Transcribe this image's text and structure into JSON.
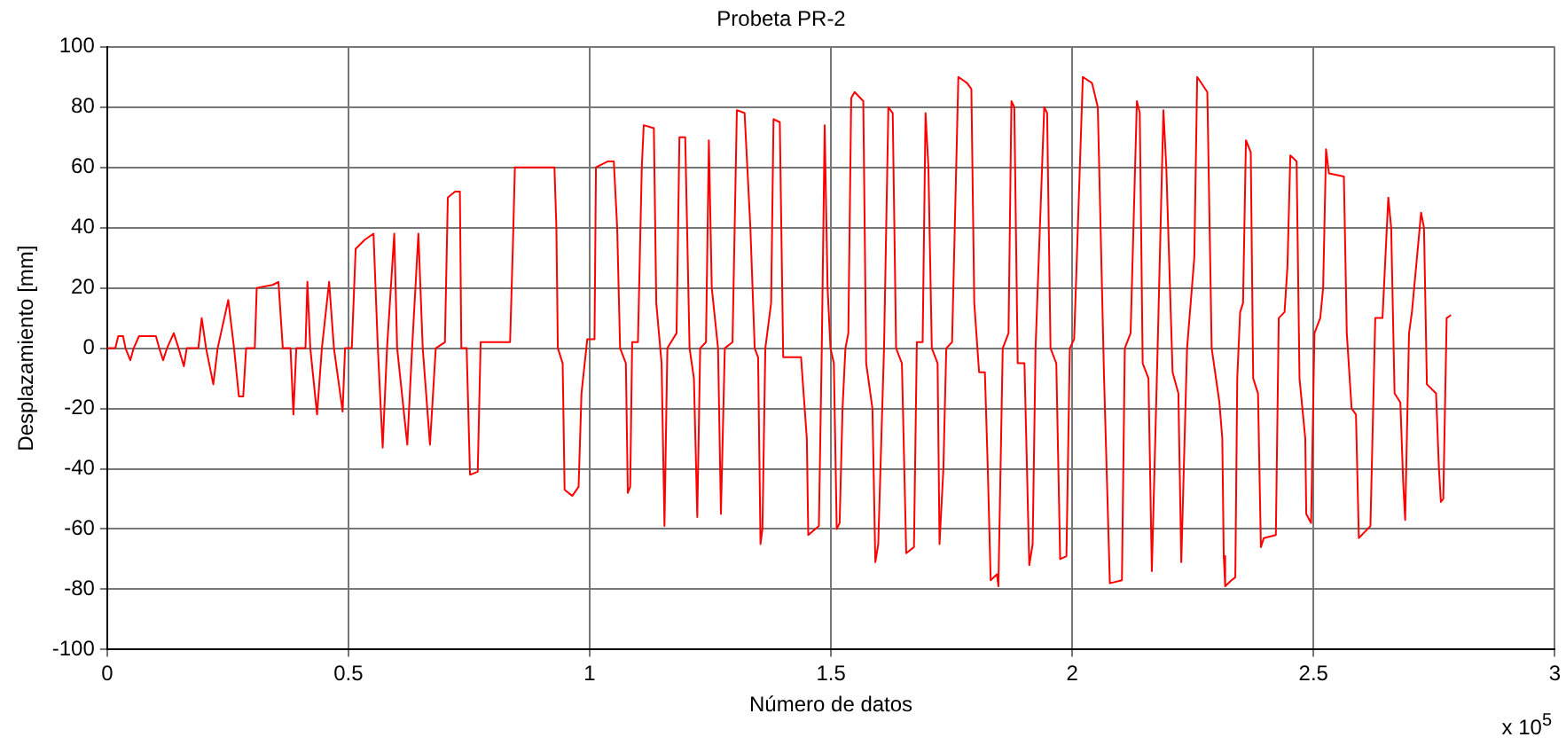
{
  "chart_data": {
    "type": "line",
    "title": "Probeta PR-2",
    "xlabel": "Número de datos",
    "ylabel": "Desplazamiento [mm]",
    "annotations": [
      "x 10$^{5}$"
    ],
    "x": [
      0,
      0.017,
      0.023,
      0.033,
      0.038,
      0.048,
      0.055,
      0.066,
      0.101,
      0.108,
      0.116,
      0.124,
      0.138,
      0.148,
      0.159,
      0.165,
      0.189,
      0.196,
      0.205,
      0.22,
      0.229,
      0.251,
      0.263,
      0.273,
      0.282,
      0.288,
      0.306,
      0.31,
      0.343,
      0.355,
      0.364,
      0.38,
      0.386,
      0.392,
      0.411,
      0.415,
      0.421,
      0.435,
      0.445,
      0.46,
      0.47,
      0.488,
      0.493,
      0.507,
      0.515,
      0.534,
      0.552,
      0.561,
      0.571,
      0.58,
      0.595,
      0.601,
      0.622,
      0.632,
      0.645,
      0.654,
      0.669,
      0.681,
      0.7,
      0.706,
      0.721,
      0.731,
      0.734,
      0.745,
      0.752,
      0.768,
      0.774,
      0.835,
      0.841,
      0.845,
      0.927,
      0.931,
      0.934,
      0.944,
      0.948,
      0.964,
      0.977,
      0.983,
      0.995,
      1.01,
      1.013,
      1.038,
      1.05,
      1.057,
      1.063,
      1.075,
      1.079,
      1.084,
      1.088,
      1.1,
      1.108,
      1.112,
      1.133,
      1.138,
      1.149,
      1.155,
      1.161,
      1.18,
      1.186,
      1.198,
      1.207,
      1.216,
      1.223,
      1.229,
      1.241,
      1.247,
      1.253,
      1.266,
      1.272,
      1.28,
      1.296,
      1.305,
      1.321,
      1.333,
      1.342,
      1.349,
      1.354,
      1.358,
      1.364,
      1.376,
      1.381,
      1.394,
      1.401,
      1.438,
      1.45,
      1.453,
      1.475,
      1.481,
      1.487,
      1.493,
      1.499,
      1.506,
      1.512,
      1.518,
      1.524,
      1.53,
      1.536,
      1.542,
      1.549,
      1.567,
      1.573,
      1.586,
      1.592,
      1.598,
      1.61,
      1.619,
      1.628,
      1.635,
      1.647,
      1.656,
      1.672,
      1.678,
      1.69,
      1.696,
      1.702,
      1.709,
      1.721,
      1.725,
      1.733,
      1.739,
      1.751,
      1.764,
      1.782,
      1.791,
      1.797,
      1.807,
      1.819,
      1.825,
      1.831,
      1.844,
      1.847,
      1.856,
      1.868,
      1.874,
      1.88,
      1.887,
      1.901,
      1.911,
      1.918,
      1.924,
      1.942,
      1.948,
      1.955,
      1.967,
      1.975,
      1.988,
      1.995,
      2.004,
      2.022,
      2.041,
      2.053,
      2.066,
      2.078,
      2.103,
      2.109,
      2.121,
      2.134,
      2.14,
      2.146,
      2.158,
      2.165,
      2.177,
      2.189,
      2.195,
      2.208,
      2.22,
      2.226,
      2.238,
      2.253,
      2.259,
      2.28,
      2.289,
      2.305,
      2.311,
      2.314,
      2.317,
      2.33,
      2.338,
      2.342,
      2.348,
      2.354,
      2.36,
      2.37,
      2.375,
      2.385,
      2.391,
      2.397,
      2.422,
      2.428,
      2.44,
      2.446,
      2.452,
      2.465,
      2.471,
      2.483,
      2.485,
      2.495,
      2.502,
      2.514,
      2.52,
      2.526,
      2.532,
      2.563,
      2.569,
      2.579,
      2.588,
      2.594,
      2.606,
      2.618,
      2.628,
      2.643,
      2.655,
      2.661,
      2.668,
      2.68,
      2.686,
      2.69,
      2.698,
      2.704,
      2.723,
      2.729,
      2.735,
      2.754,
      2.76,
      2.764,
      2.769,
      2.776,
      2.785
    ],
    "values": [
      0,
      0,
      4,
      4,
      0,
      -4,
      0,
      4,
      4,
      0,
      -4,
      0,
      5,
      0,
      -6,
      0,
      0,
      10,
      0,
      -12,
      0,
      16,
      0,
      -16,
      -16,
      0,
      0,
      20,
      21,
      22,
      0,
      0,
      -22,
      0,
      0,
      22,
      0,
      -22,
      0,
      22,
      0,
      -21,
      0,
      0,
      33,
      36,
      38,
      0,
      -33,
      0,
      38,
      0,
      -32,
      0,
      38,
      0,
      -32,
      0,
      2,
      50,
      52,
      52,
      0,
      0,
      -42,
      -41,
      2,
      2,
      35,
      60,
      60,
      40,
      0,
      -5,
      -47,
      -49,
      -46,
      -15,
      3,
      3,
      60,
      62,
      62,
      40,
      0,
      -5,
      -48,
      -46,
      2,
      2,
      60,
      74,
      73,
      15,
      -5,
      -59,
      0,
      5,
      70,
      70,
      0,
      -10,
      -56,
      0,
      2,
      69,
      20,
      0,
      -55,
      0,
      2,
      79,
      78,
      40,
      0,
      -3,
      -65,
      -60,
      0,
      15,
      76,
      75,
      -3,
      -3,
      -30,
      -62,
      -59,
      0,
      74,
      20,
      0,
      -5,
      -60,
      -58,
      -20,
      0,
      5,
      83,
      85,
      82,
      -5,
      -20,
      -71,
      -65,
      0,
      80,
      78,
      0,
      -5,
      -68,
      -66,
      2,
      2,
      78,
      60,
      0,
      -5,
      -65,
      -40,
      0,
      2,
      90,
      88,
      86,
      15,
      -8,
      -8,
      -40,
      -77,
      -75,
      -79,
      0,
      5,
      82,
      80,
      -5,
      -5,
      -72,
      -65,
      0,
      80,
      78,
      0,
      -5,
      -70,
      -69,
      0,
      3,
      90,
      88,
      80,
      -10,
      -78,
      -77,
      0,
      5,
      82,
      78,
      -5,
      -10,
      -74,
      0,
      79,
      60,
      -8,
      -15,
      -71,
      0,
      30,
      90,
      85,
      0,
      -18,
      -30,
      -69,
      -79,
      -77,
      -76,
      -10,
      12,
      15,
      69,
      65,
      -10,
      -15,
      -66,
      -63,
      -62,
      10,
      12,
      27,
      64,
      62,
      -10,
      -30,
      -55,
      -58,
      5,
      10,
      20,
      66,
      58,
      57,
      5,
      -20,
      -22,
      -63,
      -61,
      -59,
      10,
      10,
      50,
      40,
      -15,
      -18,
      -45,
      -57,
      5,
      12,
      45,
      40,
      -12,
      -15,
      -40,
      -51,
      -50,
      10,
      11
    ],
    "color": "#ff0000",
    "xlim": [
      0,
      3
    ],
    "xticks": [
      0,
      0.5,
      1,
      1.5,
      2,
      2.5,
      3
    ],
    "ylim": [
      -100,
      100
    ],
    "yticks": [
      -100,
      -80,
      -60,
      -40,
      -20,
      0,
      20,
      40,
      60,
      80,
      100
    ],
    "grid": true,
    "marker": "none",
    "line_style": "solid"
  }
}
